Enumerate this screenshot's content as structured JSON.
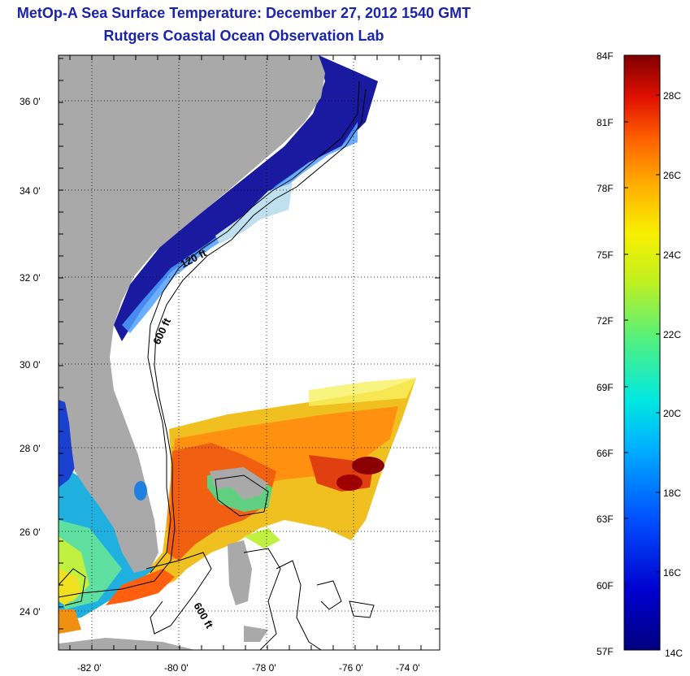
{
  "title": "MetOp-A Sea Surface Temperature:  December 27, 2012 1540 GMT",
  "subtitle": "Rutgers Coastal Ocean Observation Lab",
  "axes": {
    "lon_labels": [
      "-82 0'",
      "-80 0'",
      "-78 0'",
      "-76 0'",
      "-74 0'"
    ],
    "lat_labels": [
      "36 0'",
      "34 0'",
      "32 0'",
      "30 0'",
      "28 0'",
      "26 0'",
      "24 0'"
    ]
  },
  "contour_labels": {
    "c120": "120 ft",
    "c600_north": "600 ft",
    "c600_south": "600 ft"
  },
  "colorbar": {
    "fahrenheit": [
      "84F",
      "81F",
      "78F",
      "75F",
      "72F",
      "69F",
      "66F",
      "63F",
      "60F",
      "57F"
    ],
    "celsius": [
      "28C",
      "26C",
      "24C",
      "22C",
      "20C",
      "18C",
      "16C",
      "14C"
    ]
  },
  "colors": {
    "land": "#a9a9a9",
    "cold": "#1a1aa0",
    "warm": "#e05010",
    "hot": "#8b0000"
  }
}
